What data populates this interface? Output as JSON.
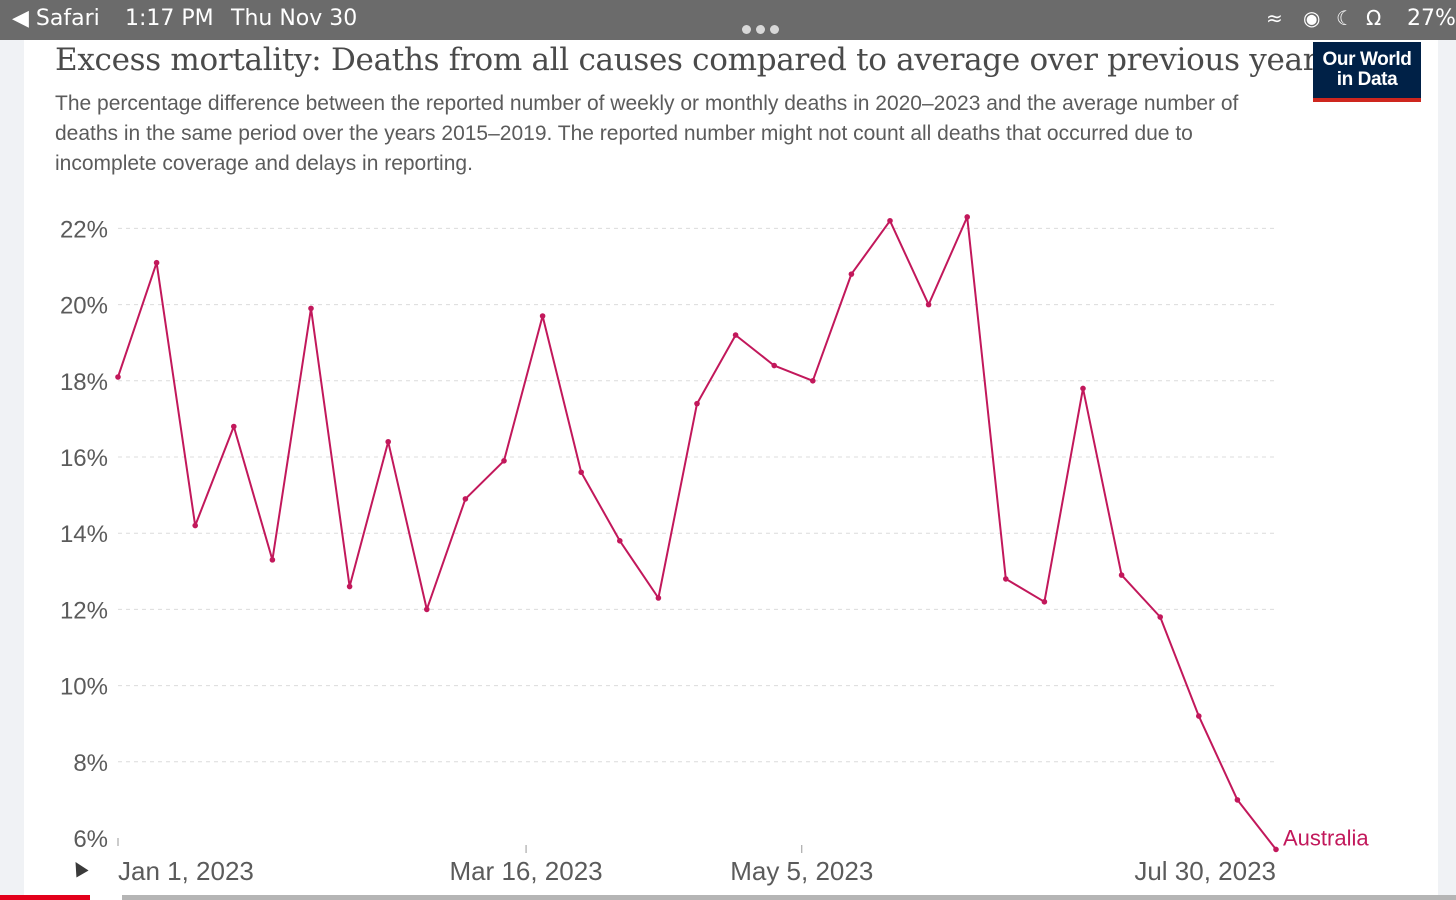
{
  "status_bar": {
    "back_app": "Safari",
    "time": "1:17 PM",
    "date": "Thu Nov 30",
    "battery": "27%"
  },
  "chart": {
    "title": "Excess mortality: Deaths from all causes compared to average over previous years",
    "subtitle": "The percentage difference between the reported number of weekly or monthly deaths in 2020–2023 and the average number of deaths in the same period over the years 2015–2019. The reported number might not count all deaths that occurred due to incomplete coverage and delays in reporting.",
    "logo_line1": "Our World",
    "logo_line2": "in Data"
  },
  "colors": {
    "series": "#c2185b",
    "logo_bg": "#002147",
    "logo_accent": "#ce261e"
  },
  "chart_data": {
    "type": "line",
    "title": "Excess mortality: Deaths from all causes compared to average over previous years",
    "xlabel": "",
    "ylabel": "",
    "ylim": [
      6,
      22
    ],
    "yticks": [
      "6%",
      "8%",
      "10%",
      "12%",
      "14%",
      "16%",
      "18%",
      "20%",
      "22%"
    ],
    "x_start": "2023-01-01",
    "x_tick_labels": [
      {
        "label": "Jan 1, 2023",
        "date": "2023-01-01"
      },
      {
        "label": "Mar 16, 2023",
        "date": "2023-03-16"
      },
      {
        "label": "May 5, 2023",
        "date": "2023-05-05"
      },
      {
        "label": "Jul 30, 2023",
        "date": "2023-07-30"
      }
    ],
    "grid": true,
    "series": [
      {
        "name": "Australia",
        "x": [
          "2023-01-01",
          "2023-01-08",
          "2023-01-15",
          "2023-01-22",
          "2023-01-29",
          "2023-02-05",
          "2023-02-12",
          "2023-02-19",
          "2023-02-26",
          "2023-03-05",
          "2023-03-12",
          "2023-03-19",
          "2023-03-26",
          "2023-04-02",
          "2023-04-09",
          "2023-04-16",
          "2023-04-23",
          "2023-04-30",
          "2023-05-07",
          "2023-05-14",
          "2023-05-21",
          "2023-05-28",
          "2023-06-04",
          "2023-06-11",
          "2023-06-18",
          "2023-06-25",
          "2023-07-02",
          "2023-07-09",
          "2023-07-16",
          "2023-07-23",
          "2023-07-30"
        ],
        "values": [
          18.1,
          21.1,
          14.2,
          16.8,
          13.3,
          19.9,
          12.6,
          16.4,
          12.0,
          14.9,
          15.9,
          19.7,
          15.6,
          13.8,
          12.3,
          17.4,
          19.2,
          18.4,
          18.0,
          20.8,
          22.2,
          20.0,
          22.3,
          12.8,
          12.2,
          17.8,
          12.9,
          11.8,
          9.2,
          7.0,
          5.7
        ]
      }
    ]
  }
}
